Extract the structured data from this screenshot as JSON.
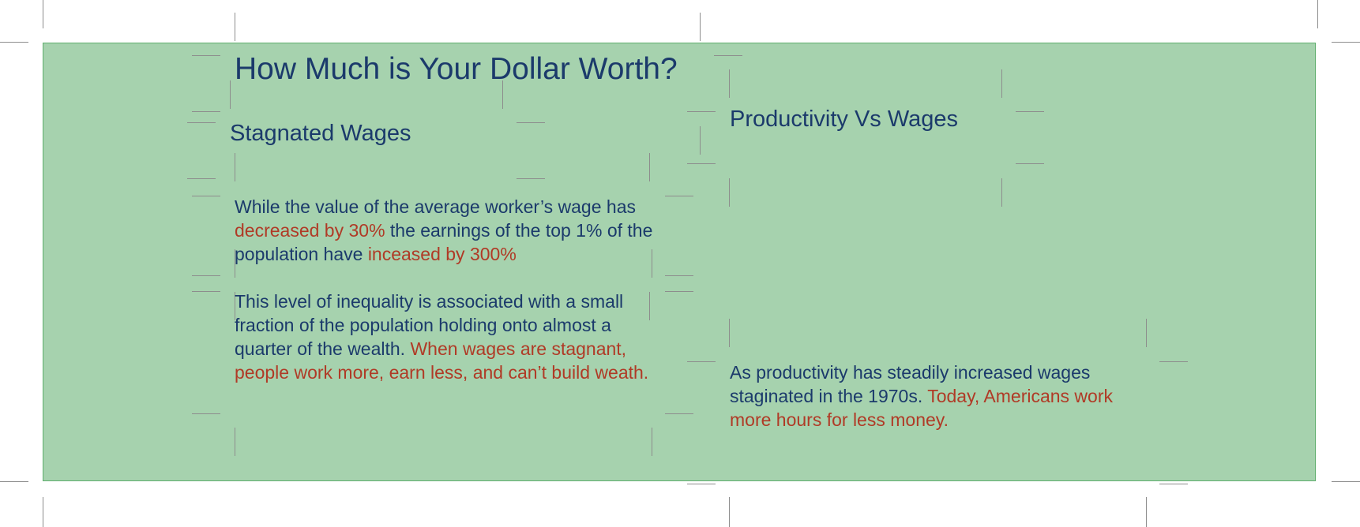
{
  "page": {
    "title": "How Much is Your Dollar Worth?"
  },
  "left_column": {
    "heading": "Stagnated Wages",
    "para1": {
      "t1": "While the value of the average worker’s wage has ",
      "h1": "decreased by 30%",
      "t2": " the earnings of the top 1% of the population have ",
      "h2": "inceased by 300%"
    },
    "para2": {
      "t1": "This level of inequality is associated with a small fraction of the population holding onto almost a quarter of the wealth. ",
      "h1": "When wages are stagnant, people work more, earn less, and can’t build weath."
    }
  },
  "right_column": {
    "heading": "Productivity Vs Wages",
    "para": {
      "t1": "As productivity has steadily increased wages staginated in the 1970s. ",
      "h1": "Today, Americans work more hours for less money."
    }
  },
  "colors": {
    "panel_background": "#a6d2ae",
    "text": "#1b3a6b",
    "highlight": "#b03a26"
  }
}
